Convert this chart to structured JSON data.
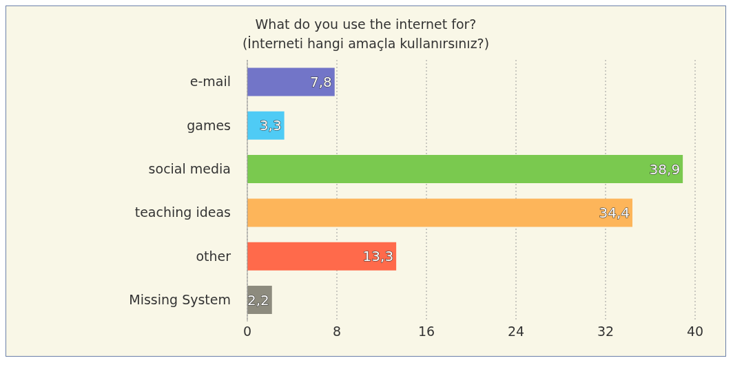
{
  "chart_data": {
    "type": "bar",
    "orientation": "horizontal",
    "title": "What do you use the internet for?",
    "subtitle": "(İnterneti hangi amaçla kullanırsınız?)",
    "categories": [
      "e-mail",
      "games",
      "social media",
      "teaching ideas",
      "other",
      "Missing System"
    ],
    "values": [
      7.8,
      3.3,
      38.9,
      34.4,
      13.3,
      2.2
    ],
    "colors": [
      "#7275c8",
      "#4fcbf5",
      "#7ac94f",
      "#fdb55a",
      "#ff6a4b",
      "#8d8b7e"
    ],
    "value_labels": [
      "7,8",
      "3,3",
      "38,9",
      "34,4",
      "13,3",
      "2,2"
    ],
    "xlim": [
      0,
      40
    ],
    "xticks": [
      0,
      8,
      16,
      24,
      32,
      40
    ],
    "grid": "x"
  }
}
